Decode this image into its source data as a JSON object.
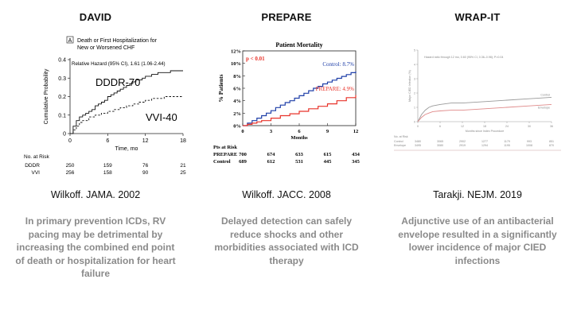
{
  "columns": [
    {
      "trial": "DAVID",
      "citation": "Wilkoff. JAMA. 2002",
      "finding": "In primary prevention ICDs, RV pacing may be detrimental by increasing the combined end point of death or hospitalization for heart failure"
    },
    {
      "trial": "PREPARE",
      "citation": "Wilkoff. JACC. 2008",
      "finding": "Delayed detection can safely reduce shocks and other morbidities associated with ICD therapy"
    },
    {
      "trial": "WRAP-IT",
      "citation": "Tarakji. NEJM. 2019",
      "finding": "Adjunctive use of an antibacterial envelope resulted in a significantly lower incidence of major CIED infections"
    }
  ],
  "chart_data": [
    {
      "type": "line",
      "panel_tag": "A",
      "title": "Death or First Hospitalization for New or Worsened CHF",
      "title_line1": "Death or First Hospitalization for",
      "title_line2": "New or Worsened CHF",
      "annotation": "Relative Hazard (95% CI), 1.61 (1.06-2.44)",
      "xlabel": "Time, mo",
      "ylabel": "Cumulative Probability",
      "xlim": [
        0,
        18
      ],
      "ylim": [
        0,
        0.4
      ],
      "xticks": [
        "0",
        "6",
        "12",
        "18"
      ],
      "yticks": [
        "0",
        "0.1",
        "0.2",
        "0.3",
        "0.4"
      ],
      "series": [
        {
          "name": "DDDR-70",
          "style": "solid",
          "x": [
            0,
            0.5,
            1,
            1.5,
            2,
            2.5,
            3,
            3.5,
            4,
            4.5,
            5,
            5.5,
            6,
            6.5,
            7,
            7.5,
            8,
            8.5,
            9,
            9.5,
            10,
            10.5,
            11,
            11.5,
            12,
            13,
            14,
            15,
            16,
            17,
            18
          ],
          "y": [
            0,
            0.04,
            0.07,
            0.09,
            0.1,
            0.11,
            0.12,
            0.13,
            0.15,
            0.16,
            0.17,
            0.18,
            0.2,
            0.21,
            0.22,
            0.23,
            0.24,
            0.25,
            0.26,
            0.27,
            0.28,
            0.29,
            0.29,
            0.3,
            0.31,
            0.32,
            0.33,
            0.33,
            0.34,
            0.34,
            0.34
          ]
        },
        {
          "name": "VVI-40",
          "style": "dashed",
          "x": [
            0,
            0.5,
            1,
            1.5,
            2,
            3,
            4,
            5,
            6,
            7,
            8,
            9,
            10,
            11,
            12,
            13,
            14,
            15,
            16,
            17,
            18
          ],
          "y": [
            0,
            0.02,
            0.04,
            0.06,
            0.07,
            0.09,
            0.1,
            0.11,
            0.12,
            0.13,
            0.14,
            0.15,
            0.16,
            0.17,
            0.18,
            0.19,
            0.19,
            0.2,
            0.2,
            0.2,
            0.2
          ]
        }
      ],
      "at_risk": {
        "label": "No. at Risk",
        "rows": [
          {
            "name": "DDDR",
            "values": [
              "250",
              "159",
              "76",
              "21"
            ]
          },
          {
            "name": "VVI",
            "values": [
              "256",
              "158",
              "90",
              "25"
            ]
          }
        ]
      }
    },
    {
      "type": "line",
      "title": "Patient Mortality",
      "annotation": "p < 0.01",
      "xlabel": "Months",
      "ylabel": "% Patients",
      "xlim": [
        0,
        12
      ],
      "ylim": [
        0,
        12
      ],
      "xticks": [
        "0",
        "3",
        "6",
        "9",
        "12"
      ],
      "yticks": [
        "0%",
        "2%",
        "4%",
        "6%",
        "8%",
        "10%",
        "12%"
      ],
      "series": [
        {
          "name": "Control: 8.7%",
          "color": "#1f3fa8",
          "x": [
            0,
            0.5,
            1,
            1.5,
            2,
            2.5,
            3,
            3.5,
            4,
            4.5,
            5,
            5.5,
            6,
            6.5,
            7,
            7.5,
            8,
            8.5,
            9,
            9.5,
            10,
            10.5,
            11,
            11.5,
            12
          ],
          "y": [
            0,
            0.4,
            0.8,
            1.2,
            1.6,
            2.0,
            2.4,
            2.9,
            3.3,
            3.7,
            4.0,
            4.4,
            4.8,
            5.2,
            5.6,
            6.0,
            6.3,
            6.7,
            7.0,
            7.3,
            7.6,
            7.9,
            8.2,
            8.5,
            8.7
          ]
        },
        {
          "name": "PREPARE: 4.9%",
          "color": "#e8332a",
          "x": [
            0,
            0.5,
            1,
            1.5,
            2,
            3,
            4,
            5,
            6,
            7,
            8,
            9,
            10,
            11,
            12
          ],
          "y": [
            0,
            0.2,
            0.4,
            0.6,
            0.8,
            1.2,
            1.6,
            1.9,
            2.3,
            2.7,
            3.1,
            3.5,
            4.0,
            4.5,
            4.9
          ]
        }
      ],
      "at_risk": {
        "label": "Pts at Risk",
        "rows": [
          {
            "name": "PREPARE",
            "values": [
              "700",
              "674",
              "633",
              "615",
              "434"
            ]
          },
          {
            "name": "Control",
            "values": [
              "689",
              "612",
              "531",
              "445",
              "345"
            ]
          }
        ]
      }
    },
    {
      "type": "line",
      "annotation": "Hazard ratio through 12 mo, 0.60 (95% CI, 0.36–0.98); P=0.04",
      "xlabel": "Months since Index Procedure",
      "ylabel": "Major CIED Infection (%)",
      "xlim": [
        0,
        36
      ],
      "ylim": [
        0,
        5
      ],
      "xticks": [
        "0",
        "6",
        "12",
        "18",
        "24",
        "30",
        "36"
      ],
      "yticks": [
        "0",
        "1",
        "2",
        "3",
        "4",
        "5"
      ],
      "series": [
        {
          "name": "Control",
          "color": "#9a9a9a",
          "x": [
            0,
            1,
            2,
            3,
            4,
            6,
            9,
            12,
            18,
            24,
            30,
            36
          ],
          "y": [
            0,
            0.5,
            0.8,
            1.0,
            1.1,
            1.2,
            1.3,
            1.3,
            1.4,
            1.5,
            1.6,
            1.7
          ]
        },
        {
          "name": "Envelope",
          "color": "#e08a8a",
          "x": [
            0,
            1,
            2,
            3,
            4,
            6,
            9,
            12,
            18,
            24,
            30,
            36
          ],
          "y": [
            0,
            0.3,
            0.5,
            0.6,
            0.7,
            0.75,
            0.8,
            0.8,
            0.9,
            1.0,
            1.1,
            1.2
          ]
        }
      ],
      "at_risk": {
        "label": "No. at Risk",
        "rows": [
          {
            "name": "Control",
            "values": [
              "3480",
              "3065",
              "2902",
              "1277",
              "1179",
              "993",
              "851"
            ]
          },
          {
            "name": "Envelope",
            "values": [
              "3495",
              "3080",
              "2919",
              "1294",
              "1195",
              "1008",
              "870"
            ]
          }
        ]
      }
    }
  ]
}
